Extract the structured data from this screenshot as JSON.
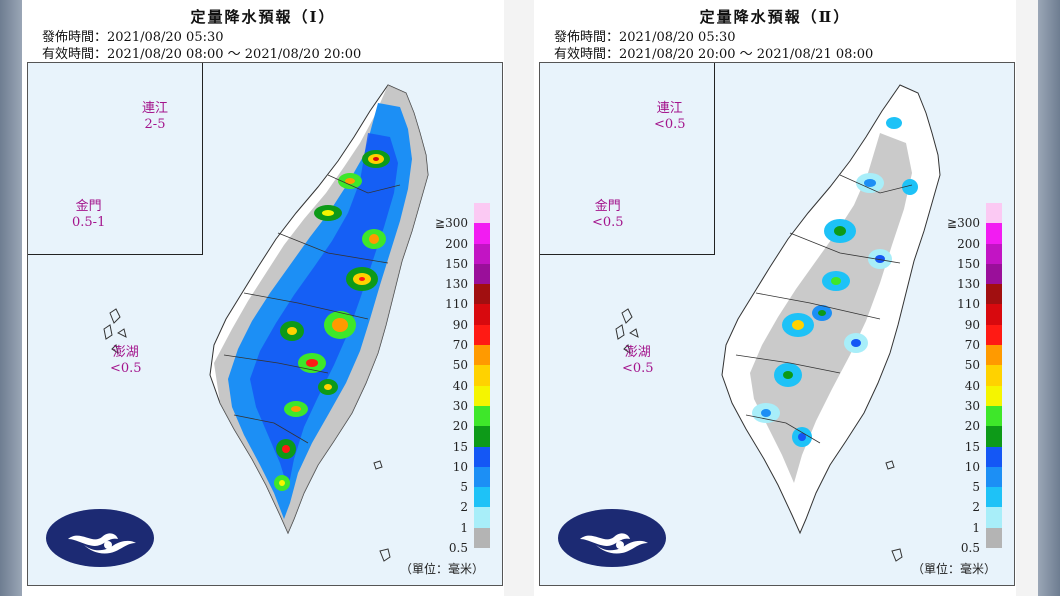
{
  "panels": [
    {
      "title": "定量降水預報（Ⅰ）",
      "issue_time": "發佈時間：2021/08/20 05:30",
      "valid_time": "有效時間：2021/08/20 08:00 ～ 2021/08/20 20:00",
      "labels": {
        "lienchiang": {
          "name": "連江",
          "value": "2-5"
        },
        "kinmen": {
          "name": "金門",
          "value": "0.5-1"
        },
        "penghu": {
          "name": "澎湖",
          "value": "<0.5"
        }
      },
      "unit": "（單位：毫米）"
    },
    {
      "title": "定量降水預報（Ⅱ）",
      "issue_time": "發佈時間：2021/08/20 05:30",
      "valid_time": "有效時間：2021/08/20 20:00 ～ 2021/08/21 08:00",
      "labels": {
        "lienchiang": {
          "name": "連江",
          "value": "<0.5"
        },
        "kinmen": {
          "name": "金門",
          "value": "<0.5"
        },
        "penghu": {
          "name": "澎湖",
          "value": "<0.5"
        }
      },
      "unit": "（單位：毫米）"
    }
  ],
  "legend": [
    {
      "label": "≧300",
      "color": "#fbc9f3"
    },
    {
      "label": "200",
      "color": "#f21cf2"
    },
    {
      "label": "150",
      "color": "#c214c4"
    },
    {
      "label": "130",
      "color": "#9a0f9a"
    },
    {
      "label": "110",
      "color": "#a10f10"
    },
    {
      "label": "90",
      "color": "#d8090e"
    },
    {
      "label": "70",
      "color": "#ff1a14"
    },
    {
      "label": "50",
      "color": "#ff9a00"
    },
    {
      "label": "40",
      "color": "#ffd200"
    },
    {
      "label": "30",
      "color": "#f5f500"
    },
    {
      "label": "20",
      "color": "#3ee72a"
    },
    {
      "label": "15",
      "color": "#0d9a18"
    },
    {
      "label": "10",
      "color": "#1457f5"
    },
    {
      "label": "5",
      "color": "#1c8ff5"
    },
    {
      "label": "2",
      "color": "#1ec2f7"
    },
    {
      "label": "1",
      "color": "#a8eef9"
    },
    {
      "label": "0.5",
      "color": "#b4b4b4"
    }
  ],
  "colors": {
    "sea": "#e8f3fb",
    "land": "#ffffff",
    "label_magenta": "#a3148c",
    "logo_navy": "#1c2a73"
  }
}
